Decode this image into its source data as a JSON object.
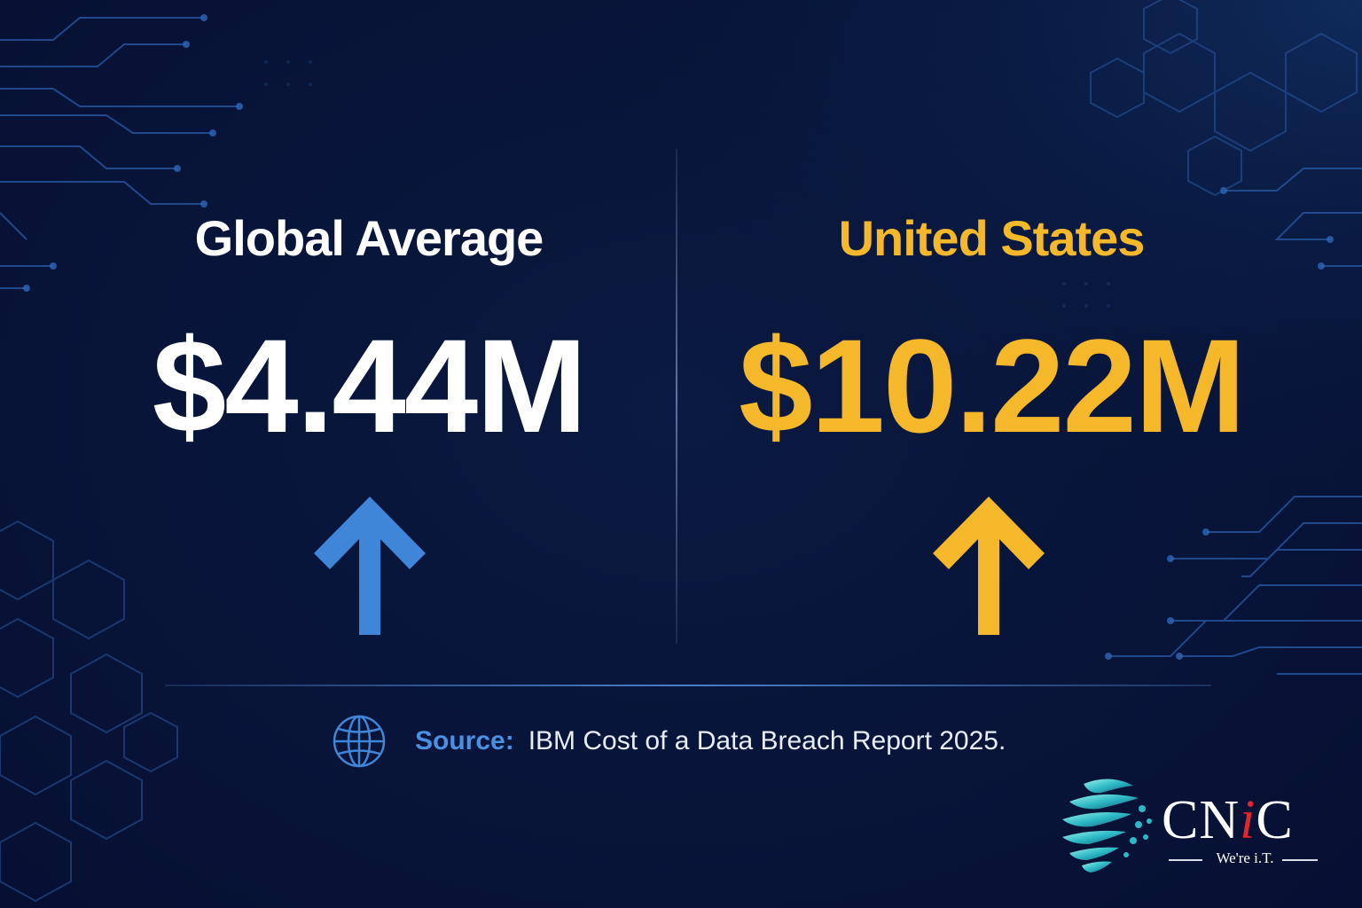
{
  "colors": {
    "background": "#08153a",
    "accent_blue": "#3f86d8",
    "accent_gold": "#f5b82b",
    "white": "#ffffff"
  },
  "left": {
    "label": "Global Average",
    "value": "$4.44M",
    "icon": "arrow-up-icon"
  },
  "right": {
    "label": "United States",
    "value": "$10.22M",
    "icon": "arrow-up-icon"
  },
  "source": {
    "icon": "globe-icon",
    "label": "Source:",
    "text": "IBM Cost of a Data Breach Report 2025."
  },
  "logo": {
    "wordmark_prefix": "CN",
    "wordmark_accent": "i",
    "wordmark_suffix": "C",
    "tagline": "We're i.T."
  }
}
